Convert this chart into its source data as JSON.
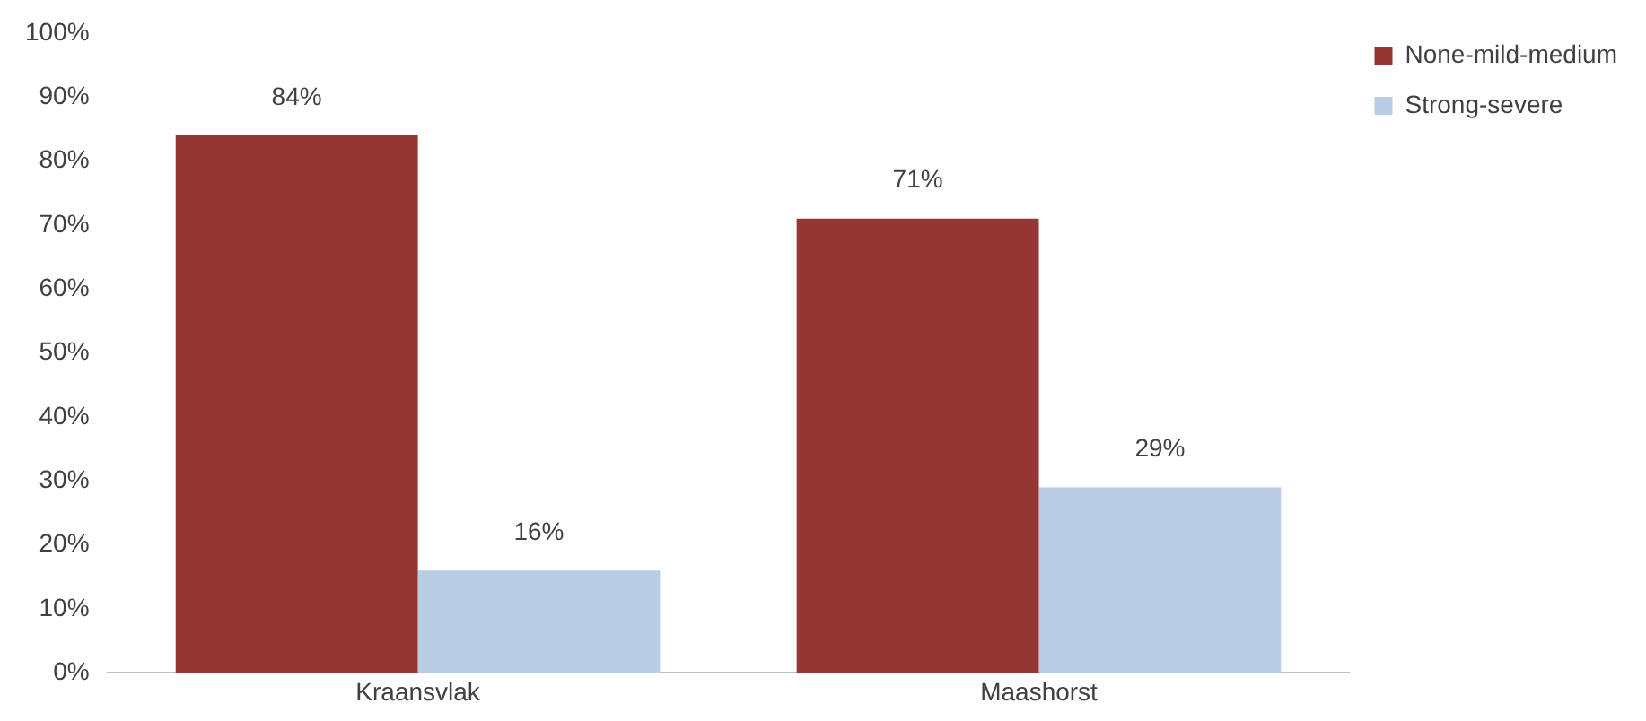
{
  "chart_data": {
    "type": "bar",
    "categories": [
      "Kraansvlak",
      "Maashorst"
    ],
    "series": [
      {
        "name": "None-mild-medium",
        "color": "#943634",
        "values": [
          84,
          71
        ],
        "value_labels": [
          "84%",
          "71%"
        ]
      },
      {
        "name": "Strong-severe",
        "color": "#b9cde5",
        "values": [
          16,
          29
        ],
        "value_labels": [
          "16%",
          "29%"
        ]
      }
    ],
    "ylim": [
      0,
      100
    ],
    "yticks": [
      {
        "value": 0,
        "label": "0%"
      },
      {
        "value": 10,
        "label": "10%"
      },
      {
        "value": 20,
        "label": "20%"
      },
      {
        "value": 30,
        "label": "30%"
      },
      {
        "value": 40,
        "label": "40%"
      },
      {
        "value": 50,
        "label": "50%"
      },
      {
        "value": 60,
        "label": "60%"
      },
      {
        "value": 70,
        "label": "70%"
      },
      {
        "value": 80,
        "label": "80%"
      },
      {
        "value": 90,
        "label": "90%"
      },
      {
        "value": 100,
        "label": "100%"
      }
    ],
    "grid": false,
    "legend": "top right"
  }
}
